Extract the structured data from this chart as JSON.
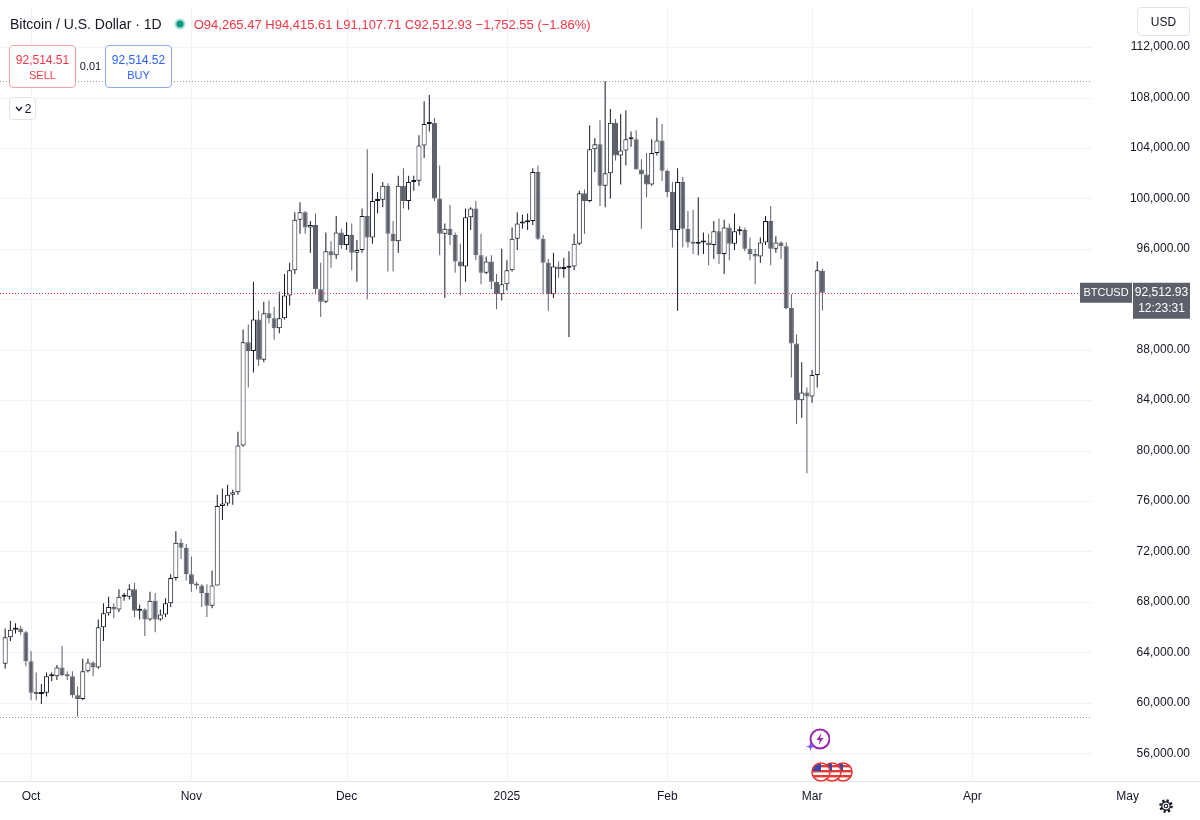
{
  "chart_data": {
    "type": "candlestick",
    "title": "Bitcoin / U.S. Dollar · 1D",
    "subtitle": "O94,265.47 H94,415.61 L91,107.71 C92,512.93 −1,752.55 (−1.86%)",
    "x": [
      "2024-09-26",
      "2024-09-27",
      "2024-09-28",
      "2024-09-29",
      "2024-09-30",
      "2024-10-01",
      "2024-10-02",
      "2024-10-03",
      "2024-10-04",
      "2024-10-05",
      "2024-10-06",
      "2024-10-07",
      "2024-10-08",
      "2024-10-09",
      "2024-10-10",
      "2024-10-11",
      "2024-10-12",
      "2024-10-13",
      "2024-10-14",
      "2024-10-15",
      "2024-10-16",
      "2024-10-17",
      "2024-10-18",
      "2024-10-19",
      "2024-10-20",
      "2024-10-21",
      "2024-10-22",
      "2024-10-23",
      "2024-10-24",
      "2024-10-25",
      "2024-10-26",
      "2024-10-27",
      "2024-10-28",
      "2024-10-29",
      "2024-10-30",
      "2024-10-31",
      "2024-11-01",
      "2024-11-02",
      "2024-11-03",
      "2024-11-04",
      "2024-11-05",
      "2024-11-06",
      "2024-11-07",
      "2024-11-08",
      "2024-11-09",
      "2024-11-10",
      "2024-11-11",
      "2024-11-12",
      "2024-11-13",
      "2024-11-14",
      "2024-11-15",
      "2024-11-16",
      "2024-11-17",
      "2024-11-18",
      "2024-11-19",
      "2024-11-20",
      "2024-11-21",
      "2024-11-22",
      "2024-11-23",
      "2024-11-24",
      "2024-11-25",
      "2024-11-26",
      "2024-11-27",
      "2024-11-28",
      "2024-11-29",
      "2024-11-30",
      "2024-12-01",
      "2024-12-02",
      "2024-12-03",
      "2024-12-04",
      "2024-12-05",
      "2024-12-06",
      "2024-12-07",
      "2024-12-08",
      "2024-12-09",
      "2024-12-10",
      "2024-12-11",
      "2024-12-12",
      "2024-12-13",
      "2024-12-14",
      "2024-12-15",
      "2024-12-16",
      "2024-12-17",
      "2024-12-18",
      "2024-12-19",
      "2024-12-20",
      "2024-12-21",
      "2024-12-22",
      "2024-12-23",
      "2024-12-24",
      "2024-12-25",
      "2024-12-26",
      "2024-12-27",
      "2024-12-28",
      "2024-12-29",
      "2024-12-30",
      "2024-12-31",
      "2025-01-01",
      "2025-01-02",
      "2025-01-03",
      "2025-01-04",
      "2025-01-05",
      "2025-01-06",
      "2025-01-07",
      "2025-01-08",
      "2025-01-09",
      "2025-01-10",
      "2025-01-11",
      "2025-01-12",
      "2025-01-13",
      "2025-01-14",
      "2025-01-15",
      "2025-01-16",
      "2025-01-17",
      "2025-01-18",
      "2025-01-19",
      "2025-01-20",
      "2025-01-21",
      "2025-01-22",
      "2025-01-23",
      "2025-01-24",
      "2025-01-25",
      "2025-01-26",
      "2025-01-27",
      "2025-01-28",
      "2025-01-29",
      "2025-01-30",
      "2025-01-31",
      "2025-02-01",
      "2025-02-02",
      "2025-02-03",
      "2025-02-04",
      "2025-02-05",
      "2025-02-06",
      "2025-02-07",
      "2025-02-08",
      "2025-02-09",
      "2025-02-10",
      "2025-02-11",
      "2025-02-12",
      "2025-02-13",
      "2025-02-14",
      "2025-02-15",
      "2025-02-16",
      "2025-02-17",
      "2025-02-18",
      "2025-02-19",
      "2025-02-20",
      "2025-02-21",
      "2025-02-22",
      "2025-02-23",
      "2025-02-24",
      "2025-02-25",
      "2025-02-26",
      "2025-02-27",
      "2025-02-28",
      "2025-03-01",
      "2025-03-02",
      "2025-03-03"
    ],
    "ohlc": [
      [
        63100,
        65900,
        62700,
        65200
      ],
      [
        65200,
        66500,
        64900,
        65800
      ],
      [
        65800,
        66300,
        65500,
        65900
      ],
      [
        65900,
        66100,
        65400,
        65600
      ],
      [
        65600,
        65700,
        62900,
        63300
      ],
      [
        63300,
        64100,
        60200,
        60800
      ],
      [
        60800,
        62400,
        60200,
        60700
      ],
      [
        60700,
        61500,
        59900,
        60800
      ],
      [
        60800,
        62400,
        60500,
        62100
      ],
      [
        62100,
        62400,
        61700,
        62100
      ],
      [
        62100,
        63000,
        61800,
        62800
      ],
      [
        62800,
        64500,
        62100,
        62200
      ],
      [
        62200,
        62500,
        61800,
        62100
      ],
      [
        62100,
        62500,
        60400,
        60600
      ],
      [
        60600,
        61300,
        58900,
        60300
      ],
      [
        60300,
        63500,
        60200,
        62500
      ],
      [
        62500,
        63500,
        62400,
        63200
      ],
      [
        63200,
        63300,
        62100,
        62800
      ],
      [
        62800,
        66600,
        62700,
        66000
      ],
      [
        66000,
        67900,
        64900,
        67100
      ],
      [
        67100,
        68400,
        66900,
        67600
      ],
      [
        67600,
        67900,
        66700,
        67400
      ],
      [
        67400,
        69000,
        67200,
        68400
      ],
      [
        68400,
        68700,
        68100,
        68400
      ],
      [
        68400,
        69400,
        68200,
        69000
      ],
      [
        69000,
        69500,
        66800,
        67300
      ],
      [
        67300,
        67800,
        66600,
        67400
      ],
      [
        67400,
        67500,
        65300,
        66600
      ],
      [
        66600,
        68800,
        66500,
        68100
      ],
      [
        68100,
        68700,
        65600,
        66600
      ],
      [
        66600,
        67400,
        66500,
        67000
      ],
      [
        67000,
        68300,
        66800,
        67900
      ],
      [
        67900,
        70200,
        67600,
        69900
      ],
      [
        69900,
        73600,
        69700,
        72700
      ],
      [
        72700,
        73000,
        71400,
        72300
      ],
      [
        72300,
        72600,
        69700,
        70200
      ],
      [
        70200,
        71600,
        68800,
        69400
      ],
      [
        69400,
        69600,
        69000,
        69300
      ],
      [
        69300,
        69400,
        67600,
        68700
      ],
      [
        68700,
        69400,
        66800,
        67700
      ],
      [
        67700,
        70500,
        67500,
        69300
      ],
      [
        69300,
        76500,
        69300,
        75600
      ],
      [
        75600,
        77000,
        74500,
        75800
      ],
      [
        75800,
        77300,
        75600,
        76500
      ],
      [
        76500,
        76900,
        75700,
        76700
      ],
      [
        76700,
        81500,
        76500,
        80400
      ],
      [
        80400,
        89600,
        80300,
        88600
      ],
      [
        88600,
        90000,
        85000,
        87900
      ],
      [
        87900,
        93400,
        86200,
        90400
      ],
      [
        90400,
        91100,
        86700,
        87200
      ],
      [
        87200,
        91800,
        87000,
        90900
      ],
      [
        90900,
        91900,
        90100,
        90500
      ],
      [
        90500,
        91400,
        88800,
        89700
      ],
      [
        89700,
        92600,
        89300,
        90500
      ],
      [
        90500,
        94000,
        90400,
        92300
      ],
      [
        92300,
        94900,
        91500,
        94300
      ],
      [
        94300,
        98900,
        94000,
        98300
      ],
      [
        98300,
        99700,
        97200,
        98900
      ],
      [
        98900,
        99000,
        97200,
        97700
      ],
      [
        97700,
        98200,
        95700,
        97900
      ],
      [
        97900,
        98800,
        92400,
        92800
      ],
      [
        92800,
        94900,
        90600,
        91800
      ],
      [
        91800,
        97300,
        91700,
        95800
      ],
      [
        95800,
        96600,
        94500,
        95500
      ],
      [
        95500,
        98600,
        95200,
        97300
      ],
      [
        97300,
        97600,
        96000,
        96300
      ],
      [
        96300,
        98100,
        95900,
        97100
      ],
      [
        97100,
        98000,
        94300,
        95700
      ],
      [
        95700,
        96700,
        93400,
        95900
      ],
      [
        95900,
        99200,
        95700,
        98600
      ],
      [
        98600,
        103900,
        92000,
        96900
      ],
      [
        96900,
        102000,
        96400,
        99800
      ],
      [
        99800,
        100500,
        98800,
        99900
      ],
      [
        99900,
        101300,
        99300,
        101000
      ],
      [
        101000,
        101200,
        94200,
        97200
      ],
      [
        97200,
        98200,
        94200,
        96600
      ],
      [
        96600,
        101800,
        95700,
        101000
      ],
      [
        101000,
        102400,
        99200,
        99800
      ],
      [
        99800,
        101800,
        99100,
        101300
      ],
      [
        101300,
        101800,
        100600,
        101400
      ],
      [
        101400,
        105000,
        101000,
        104200
      ],
      [
        104200,
        107700,
        103200,
        105900
      ],
      [
        105900,
        108200,
        105300,
        106000
      ],
      [
        106000,
        106400,
        99800,
        100000
      ],
      [
        100000,
        102600,
        95500,
        97200
      ],
      [
        97200,
        98000,
        92100,
        97600
      ],
      [
        97600,
        99500,
        96300,
        97100
      ],
      [
        97100,
        97300,
        94100,
        95000
      ],
      [
        95000,
        96400,
        92300,
        94600
      ],
      [
        94600,
        99200,
        93400,
        98500
      ],
      [
        98500,
        99300,
        97500,
        99200
      ],
      [
        99200,
        99800,
        95100,
        95500
      ],
      [
        95500,
        97200,
        93200,
        94100
      ],
      [
        94100,
        95400,
        94000,
        95000
      ],
      [
        95000,
        95500,
        92800,
        93400
      ],
      [
        93400,
        94000,
        91200,
        92400
      ],
      [
        92400,
        96000,
        91900,
        93200
      ],
      [
        93200,
        95100,
        92700,
        94300
      ],
      [
        94300,
        97700,
        94200,
        96800
      ],
      [
        96800,
        98900,
        95900,
        98000
      ],
      [
        98000,
        98700,
        97600,
        98100
      ],
      [
        98100,
        98800,
        97500,
        98200
      ],
      [
        98200,
        102400,
        97900,
        102100
      ],
      [
        102100,
        102600,
        96700,
        96800
      ],
      [
        96800,
        97100,
        92400,
        94900
      ],
      [
        94900,
        95200,
        91100,
        92400
      ],
      [
        92400,
        95700,
        92100,
        94600
      ],
      [
        94600,
        95000,
        93700,
        94400
      ],
      [
        94400,
        95300,
        93700,
        94500
      ],
      [
        94500,
        95800,
        89000,
        94600
      ],
      [
        94600,
        97200,
        94300,
        96400
      ],
      [
        96400,
        100600,
        96300,
        100400
      ],
      [
        100400,
        100700,
        97200,
        99800
      ],
      [
        99800,
        105800,
        99700,
        103900
      ],
      [
        103900,
        104800,
        102100,
        104300
      ],
      [
        104300,
        106200,
        99400,
        101000
      ],
      [
        101000,
        109300,
        99300,
        102000
      ],
      [
        102000,
        107100,
        100000,
        106000
      ],
      [
        106000,
        106300,
        103000,
        103400
      ],
      [
        103400,
        106700,
        101100,
        103800
      ],
      [
        103800,
        107000,
        102600,
        104700
      ],
      [
        104700,
        105300,
        104100,
        104700
      ],
      [
        104700,
        105400,
        102300,
        102300
      ],
      [
        102300,
        103100,
        97600,
        101900
      ],
      [
        101900,
        103600,
        100100,
        101100
      ],
      [
        101100,
        104700,
        101000,
        103600
      ],
      [
        103600,
        106400,
        103400,
        104600
      ],
      [
        104600,
        105900,
        101400,
        102200
      ],
      [
        102200,
        102300,
        100100,
        100500
      ],
      [
        100500,
        101300,
        96100,
        97500
      ],
      [
        97500,
        102400,
        91100,
        101300
      ],
      [
        101300,
        101700,
        96100,
        97600
      ],
      [
        97600,
        99000,
        96100,
        96500
      ],
      [
        96500,
        99100,
        95600,
        96400
      ],
      [
        96400,
        100100,
        95500,
        96500
      ],
      [
        96500,
        97300,
        95600,
        96500
      ],
      [
        96500,
        97200,
        94700,
        96300
      ],
      [
        96300,
        98200,
        95200,
        97400
      ],
      [
        97400,
        98400,
        94800,
        95600
      ],
      [
        95600,
        98300,
        94000,
        97700
      ],
      [
        97700,
        98000,
        95100,
        96400
      ],
      [
        96400,
        98800,
        95900,
        97400
      ],
      [
        97400,
        97800,
        97100,
        97500
      ],
      [
        97500,
        97700,
        95800,
        96000
      ],
      [
        96000,
        96900,
        95100,
        95600
      ],
      [
        95600,
        96000,
        93200,
        95400
      ],
      [
        95400,
        96900,
        94900,
        96500
      ],
      [
        96500,
        98600,
        96300,
        98200
      ],
      [
        98200,
        99400,
        94700,
        96000
      ],
      [
        96000,
        97000,
        95700,
        96500
      ],
      [
        96500,
        96600,
        95200,
        96200
      ],
      [
        96200,
        96500,
        91200,
        91300
      ],
      [
        91300,
        92400,
        85800,
        88500
      ],
      [
        88500,
        89200,
        82100,
        84000
      ],
      [
        84000,
        87000,
        82600,
        84600
      ],
      [
        84600,
        85000,
        78200,
        84300
      ],
      [
        84300,
        86400,
        83800,
        86000
      ],
      [
        86000,
        95000,
        85000,
        94300
      ],
      [
        94265.47,
        94415.61,
        91107.71,
        92512.93
      ]
    ],
    "colors": [
      "#131722",
      "#131722",
      "#131722",
      "#5d606b",
      "#5d606b",
      "#5d606b",
      "#5d606b",
      "#131722",
      "#131722",
      "#131722",
      "#131722",
      "#5d606b",
      "#5d606b",
      "#5d606b",
      "#5d606b",
      "#131722",
      "#131722",
      "#5d606b",
      "#131722",
      "#131722",
      "#131722",
      "#5d606b",
      "#131722",
      "#131722",
      "#131722",
      "#5d606b",
      "#131722",
      "#5d606b",
      "#131722",
      "#5d606b",
      "#131722",
      "#131722",
      "#131722",
      "#131722",
      "#5d606b",
      "#5d606b",
      "#5d606b",
      "#5d606b",
      "#5d606b",
      "#5d606b",
      "#131722",
      "#131722",
      "#131722",
      "#131722",
      "#131722",
      "#131722",
      "#131722",
      "#5d606b",
      "#131722",
      "#5d606b",
      "#131722",
      "#5d606b",
      "#5d606b",
      "#131722",
      "#131722",
      "#131722",
      "#131722",
      "#131722",
      "#5d606b",
      "#131722",
      "#5d606b",
      "#5d606b",
      "#131722",
      "#5d606b",
      "#131722",
      "#5d606b",
      "#131722",
      "#5d606b",
      "#131722",
      "#131722",
      "#5d606b",
      "#131722",
      "#131722",
      "#131722",
      "#5d606b",
      "#5d606b",
      "#131722",
      "#5d606b",
      "#131722",
      "#131722",
      "#131722",
      "#131722",
      "#131722",
      "#5d606b",
      "#5d606b",
      "#131722",
      "#5d606b",
      "#5d606b",
      "#5d606b",
      "#131722",
      "#131722",
      "#5d606b",
      "#5d606b",
      "#131722",
      "#5d606b",
      "#5d606b",
      "#131722",
      "#131722",
      "#131722",
      "#131722",
      "#131722",
      "#131722",
      "#131722",
      "#5d606b",
      "#5d606b",
      "#5d606b",
      "#131722",
      "#5d606b",
      "#131722",
      "#131722",
      "#131722",
      "#131722",
      "#5d606b",
      "#131722",
      "#131722",
      "#5d606b",
      "#131722",
      "#131722",
      "#5d606b",
      "#131722",
      "#131722",
      "#131722",
      "#5d606b",
      "#5d606b",
      "#5d606b",
      "#131722",
      "#131722",
      "#5d606b",
      "#5d606b",
      "#5d606b",
      "#131722",
      "#5d606b",
      "#5d606b",
      "#5d606b",
      "#131722",
      "#131722",
      "#5d606b",
      "#131722",
      "#5d606b",
      "#131722",
      "#5d606b",
      "#131722",
      "#131722",
      "#5d606b",
      "#5d606b",
      "#5d606b",
      "#131722",
      "#131722",
      "#5d606b",
      "#131722",
      "#5d606b",
      "#5d606b",
      "#5d606b",
      "#5d606b",
      "#131722",
      "#5d606b",
      "#131722",
      "#131722",
      "#5d606b"
    ],
    "xlim": [
      "2024-09-25",
      "2025-05-15"
    ],
    "xticks": [
      {
        "value": "2024-10-01",
        "label": "Oct"
      },
      {
        "value": "2024-11-01",
        "label": "Nov"
      },
      {
        "value": "2024-12-01",
        "label": "Dec"
      },
      {
        "value": "2025-01-01",
        "label": "2025"
      },
      {
        "value": "2025-02-01",
        "label": "Feb"
      },
      {
        "value": "2025-03-01",
        "label": "Mar"
      },
      {
        "value": "2025-04-01",
        "label": "Apr"
      },
      {
        "value": "2025-05-01",
        "label": "May"
      }
    ],
    "ylim": [
      53750,
      115100
    ],
    "yticks": [
      {
        "value": 56000,
        "label": "56,000.00"
      },
      {
        "value": 60000,
        "label": "60,000.00"
      },
      {
        "value": 64000,
        "label": "64,000.00"
      },
      {
        "value": 68000,
        "label": "68,000.00"
      },
      {
        "value": 72000,
        "label": "72,000.00"
      },
      {
        "value": 76000,
        "label": "76,000.00"
      },
      {
        "value": 80000,
        "label": "80,000.00"
      },
      {
        "value": 84000,
        "label": "84,000.00"
      },
      {
        "value": 88000,
        "label": "88,000.00"
      },
      {
        "value": 92000,
        "label": null
      },
      {
        "value": 96000,
        "label": "96,000.00"
      },
      {
        "value": 100000,
        "label": "100,000.00"
      },
      {
        "value": 104000,
        "label": "104,000.00"
      },
      {
        "value": 108000,
        "label": "108,000.00"
      },
      {
        "value": 112000,
        "label": "112,000.00"
      }
    ],
    "grid": true,
    "ref_lines": [
      {
        "axis": "y",
        "value": 92512.93,
        "label": "92,512.93\n12:23:31",
        "color": "#f23645",
        "line_style": "dotted"
      },
      {
        "axis": "y",
        "value": 109300,
        "color": "#9598a1",
        "line_style": "dotted"
      },
      {
        "axis": "y",
        "value": 58900,
        "color": "#9598a1",
        "line_style": "dotted"
      }
    ],
    "annotations": [
      "92,514.51",
      "SELL",
      "0.01",
      "92,514.52",
      "BUY",
      "2",
      "USD",
      {
        "text": "BTCUSD",
        "y": 92512.93
      }
    ]
  }
}
